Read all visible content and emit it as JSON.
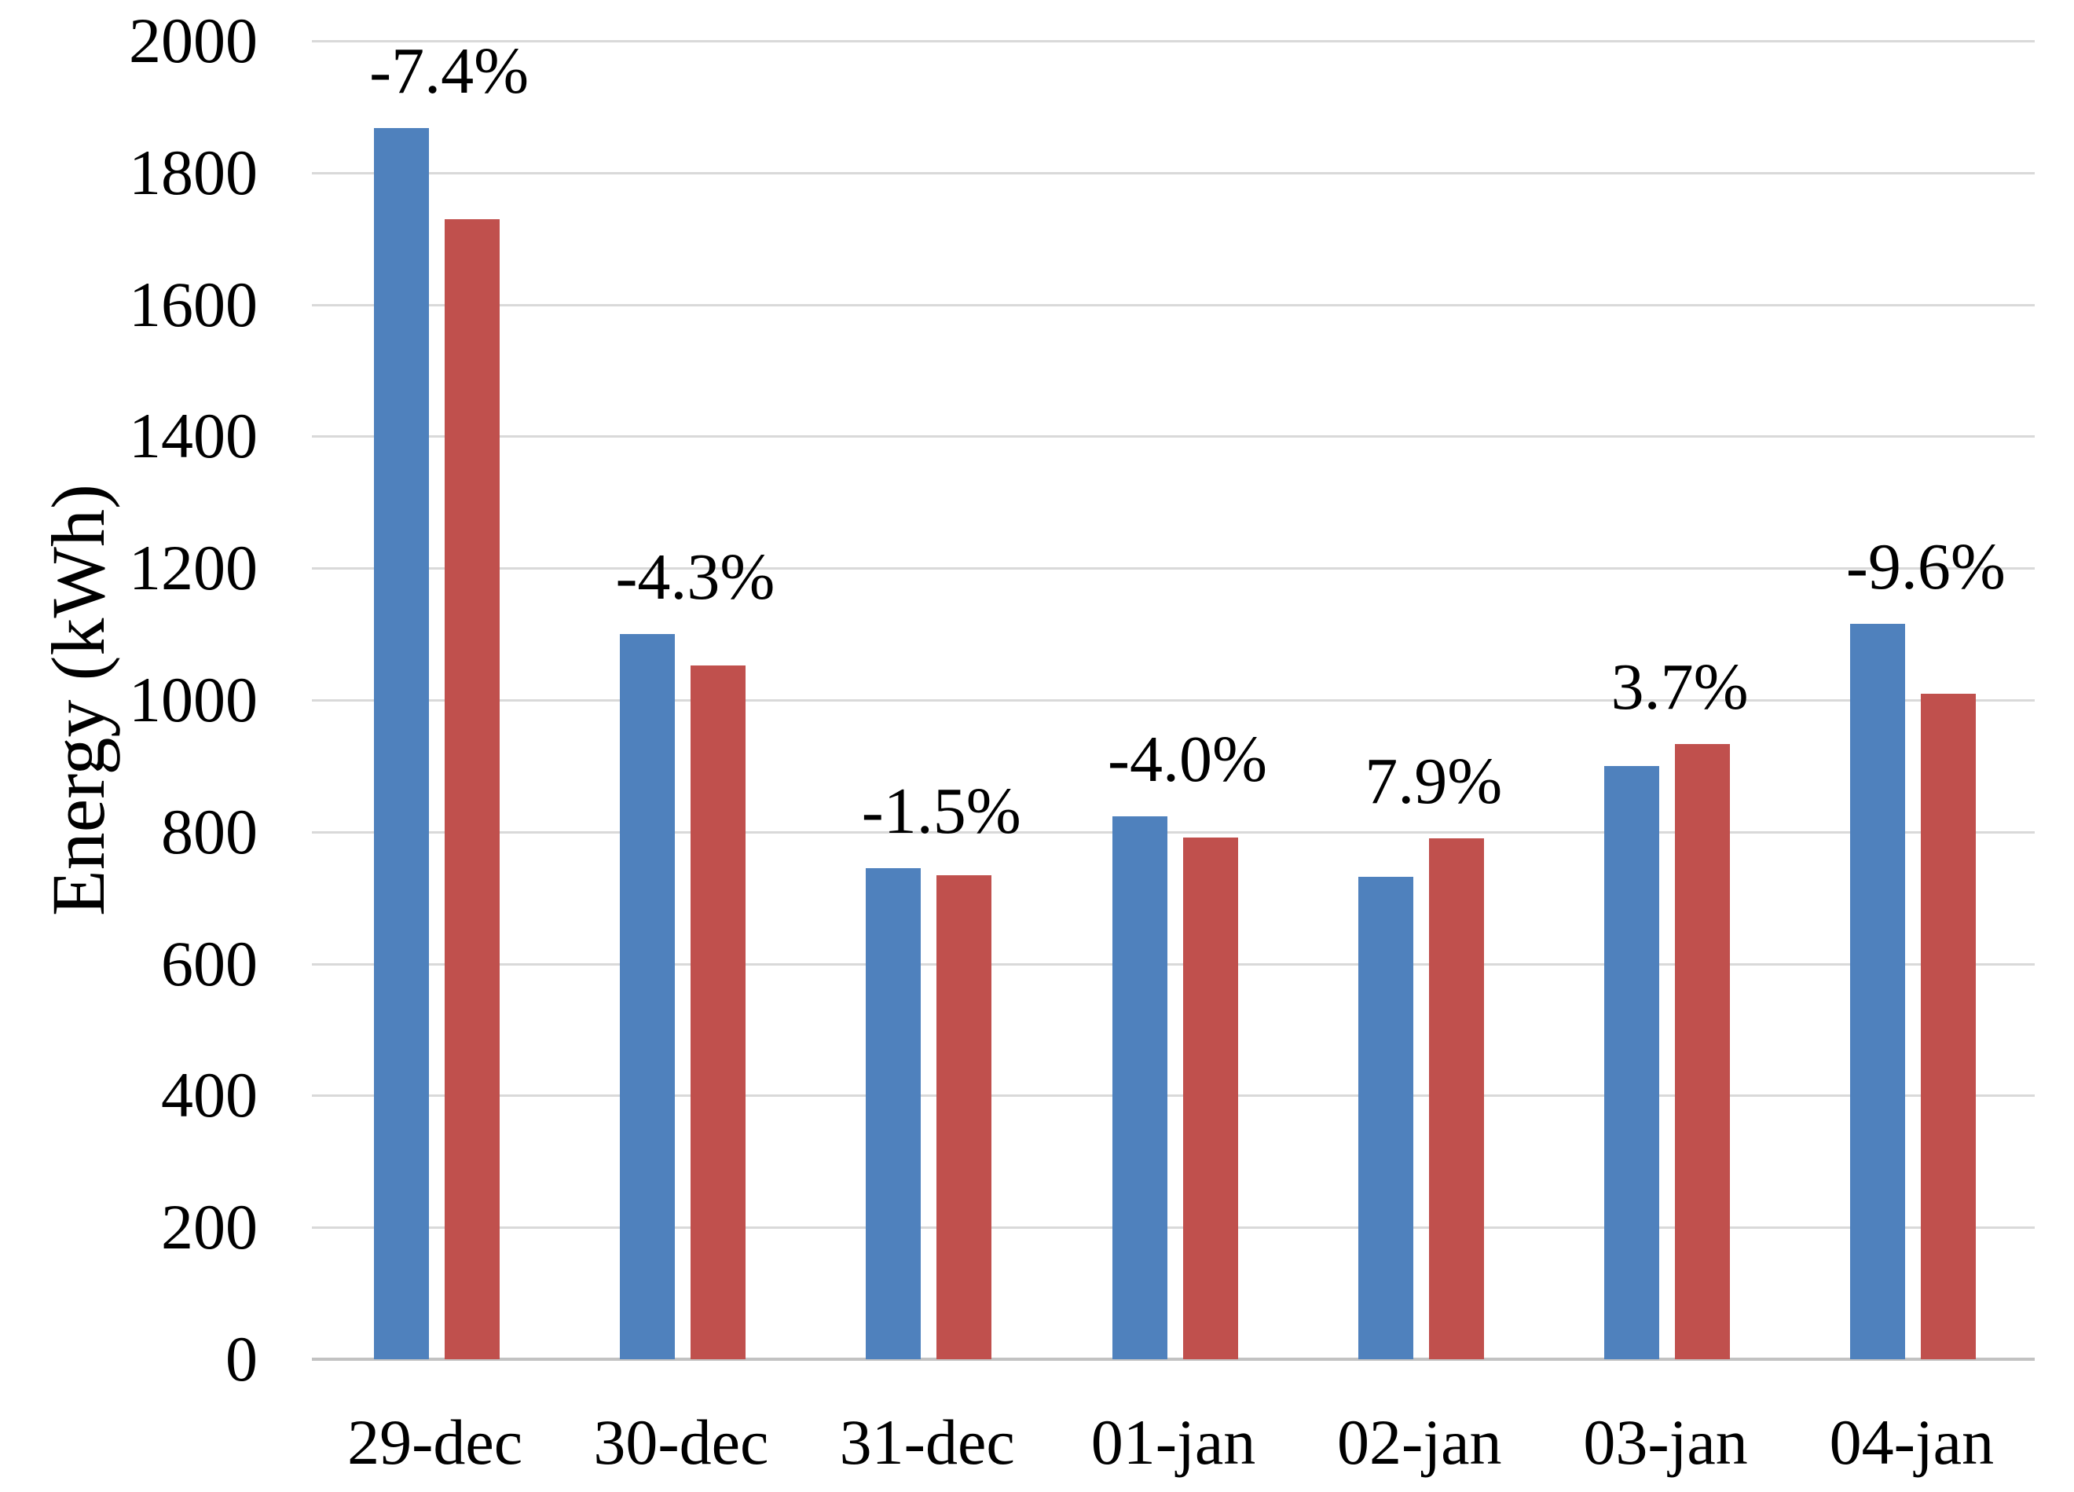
{
  "chart_data": {
    "type": "bar",
    "title": "",
    "xlabel": "",
    "ylabel": "Energy (kWh)",
    "categories": [
      "29-dec",
      "30-dec",
      "31-dec",
      "01-jan",
      "02-jan",
      "03-jan",
      "04-jan"
    ],
    "series": [
      {
        "name": "series-1-blue",
        "color": "#4F81BD",
        "values": [
          1868,
          1100,
          745,
          824,
          732,
          900,
          1116
        ]
      },
      {
        "name": "series-2-red",
        "color": "#C0504D",
        "values": [
          1730,
          1053,
          734,
          791,
          790,
          933,
          1009
        ]
      }
    ],
    "bar_pair_labels": [
      "-7.4%",
      "-4.3%",
      "-1.5%",
      "-4.0%",
      "7.9%",
      "3.7%",
      "-9.6%"
    ],
    "ylim": [
      0,
      2000
    ],
    "ytick_step": 200,
    "ytick_labels": [
      "0",
      "200",
      "400",
      "600",
      "800",
      "1000",
      "1200",
      "1400",
      "1600",
      "1800",
      "2000"
    ],
    "grid": true,
    "legend": "none",
    "gridline_color": "#D9D9D9",
    "axis_line_color": "#C2C2C2",
    "text_color": "#000000",
    "background_color": "#FFFFFF"
  }
}
